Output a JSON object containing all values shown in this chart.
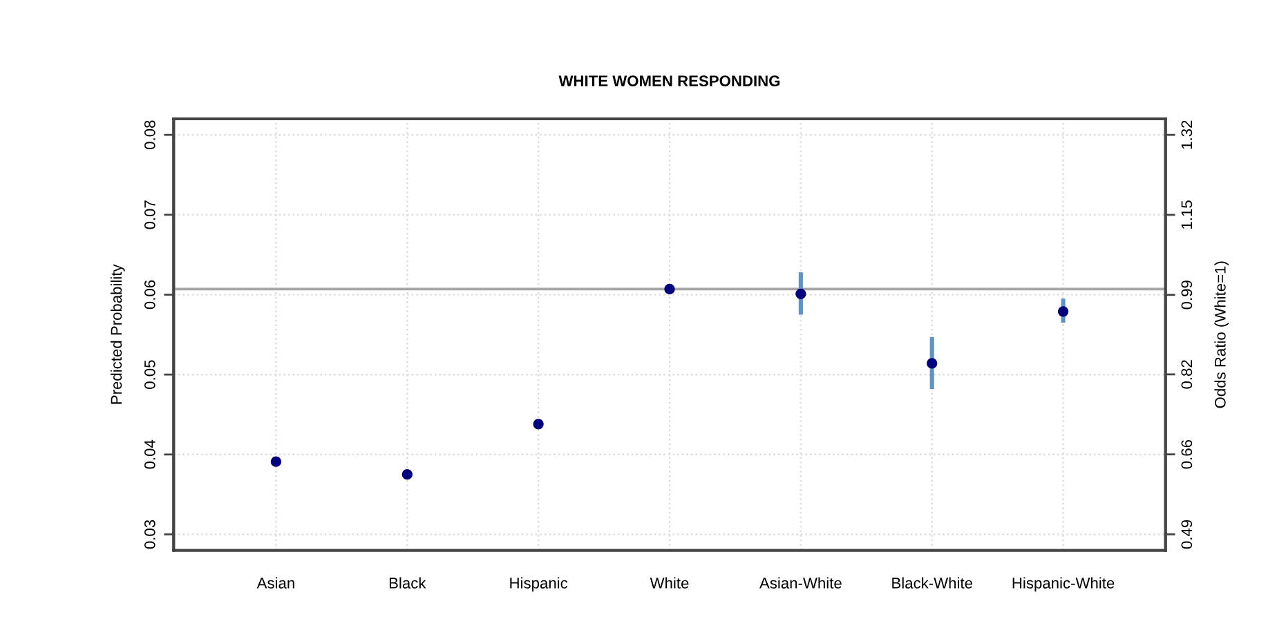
{
  "chart_data": {
    "type": "scatter",
    "title": "WHITE WOMEN RESPONDING",
    "ylabel": "Predicted Probability",
    "y2label": "Odds Ratio (White=1)",
    "categories": [
      "Asian",
      "Black",
      "Hispanic",
      "White",
      "Asian-White",
      "Black-White",
      "Hispanic-White"
    ],
    "series": [
      {
        "color": "#00007f",
        "values": [
          0.0391,
          0.0375,
          0.0438,
          0.0607,
          0.0601,
          0.0514,
          0.0579
        ],
        "errors": [
          [
            0.0388,
            0.0394
          ],
          [
            0.0372,
            0.0378
          ],
          [
            0.0435,
            0.0441
          ],
          null,
          [
            0.0575,
            0.0628
          ],
          [
            0.0482,
            0.0547
          ],
          [
            0.0565,
            0.0595
          ]
        ]
      }
    ],
    "ylim": [
      0.028,
      0.082
    ],
    "yticks": [
      0.03,
      0.04,
      0.05,
      0.06,
      0.07,
      0.08
    ],
    "y2lim": [
      0.461,
      1.351
    ],
    "y2ticks": [
      {
        "value": 0.494,
        "label": "0.49"
      },
      {
        "value": 0.659,
        "label": "0.66"
      },
      {
        "value": 0.824,
        "label": "0.82"
      },
      {
        "value": 0.988,
        "label": "0.99"
      },
      {
        "value": 1.153,
        "label": "1.15"
      },
      {
        "value": 1.318,
        "label": "1.32"
      }
    ],
    "ref_lines": [
      {
        "axis": "y",
        "value": 0.0607,
        "color": "#a6a6a6"
      }
    ],
    "grid": true,
    "marker": "circle"
  }
}
